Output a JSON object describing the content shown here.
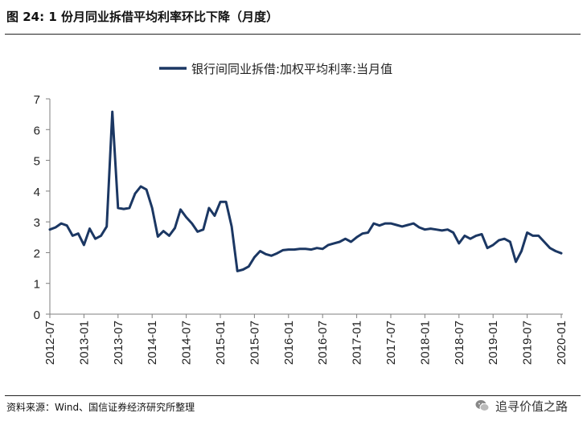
{
  "figure": {
    "title": "图 24:  1 份月同业拆借平均利率环比下降（月度）",
    "source": "资料来源：Wind、国信证券经济研究所整理",
    "watermark": "追寻价值之路"
  },
  "chart_data": {
    "type": "line",
    "title": "",
    "xlabel": "",
    "ylabel": "",
    "ylim": [
      0,
      7
    ],
    "yticks": [
      "0",
      "1",
      "2",
      "3",
      "4",
      "5",
      "6",
      "7"
    ],
    "xticks": [
      "2012-07",
      "2013-01",
      "2013-07",
      "2014-01",
      "2014-07",
      "2015-01",
      "2015-07",
      "2016-01",
      "2016-07",
      "2017-01",
      "2017-07",
      "2018-01",
      "2018-07",
      "2019-01",
      "2019-07",
      "2020-01"
    ],
    "grid": false,
    "legend_position": "top-center",
    "color": "#1b3763",
    "series": [
      {
        "name": "银行间同业拆借:加权平均利率:当月值",
        "x": [
          "2012-07",
          "2012-08",
          "2012-09",
          "2012-10",
          "2012-11",
          "2012-12",
          "2013-01",
          "2013-02",
          "2013-03",
          "2013-04",
          "2013-05",
          "2013-06",
          "2013-07",
          "2013-08",
          "2013-09",
          "2013-10",
          "2013-11",
          "2013-12",
          "2014-01",
          "2014-02",
          "2014-03",
          "2014-04",
          "2014-05",
          "2014-06",
          "2014-07",
          "2014-08",
          "2014-09",
          "2014-10",
          "2014-11",
          "2014-12",
          "2015-01",
          "2015-02",
          "2015-03",
          "2015-04",
          "2015-05",
          "2015-06",
          "2015-07",
          "2015-08",
          "2015-09",
          "2015-10",
          "2015-11",
          "2015-12",
          "2016-01",
          "2016-02",
          "2016-03",
          "2016-04",
          "2016-05",
          "2016-06",
          "2016-07",
          "2016-08",
          "2016-09",
          "2016-10",
          "2016-11",
          "2016-12",
          "2017-01",
          "2017-02",
          "2017-03",
          "2017-04",
          "2017-05",
          "2017-06",
          "2017-07",
          "2017-08",
          "2017-09",
          "2017-10",
          "2017-11",
          "2017-12",
          "2018-01",
          "2018-02",
          "2018-03",
          "2018-04",
          "2018-05",
          "2018-06",
          "2018-07",
          "2018-08",
          "2018-09",
          "2018-10",
          "2018-11",
          "2018-12",
          "2019-01",
          "2019-02",
          "2019-03",
          "2019-04",
          "2019-05",
          "2019-06",
          "2019-07",
          "2019-08",
          "2019-09",
          "2019-10",
          "2019-11",
          "2019-12",
          "2020-01"
        ],
        "values": [
          2.75,
          2.82,
          2.95,
          2.88,
          2.55,
          2.62,
          2.25,
          2.78,
          2.45,
          2.55,
          2.85,
          6.58,
          3.45,
          3.42,
          3.45,
          3.92,
          4.15,
          4.05,
          3.45,
          2.52,
          2.7,
          2.55,
          2.8,
          3.4,
          3.15,
          2.95,
          2.68,
          2.75,
          3.45,
          3.2,
          3.65,
          3.65,
          2.85,
          1.4,
          1.45,
          1.55,
          1.85,
          2.05,
          1.95,
          1.9,
          1.98,
          2.08,
          2.1,
          2.1,
          2.12,
          2.12,
          2.1,
          2.15,
          2.12,
          2.25,
          2.3,
          2.35,
          2.45,
          2.35,
          2.5,
          2.62,
          2.65,
          2.95,
          2.88,
          2.95,
          2.95,
          2.9,
          2.85,
          2.9,
          2.95,
          2.82,
          2.75,
          2.78,
          2.75,
          2.72,
          2.75,
          2.65,
          2.3,
          2.55,
          2.45,
          2.55,
          2.6,
          2.15,
          2.25,
          2.4,
          2.45,
          2.35,
          1.7,
          2.05,
          2.65,
          2.55,
          2.55,
          2.35,
          2.15,
          2.05,
          1.98
        ]
      }
    ]
  }
}
